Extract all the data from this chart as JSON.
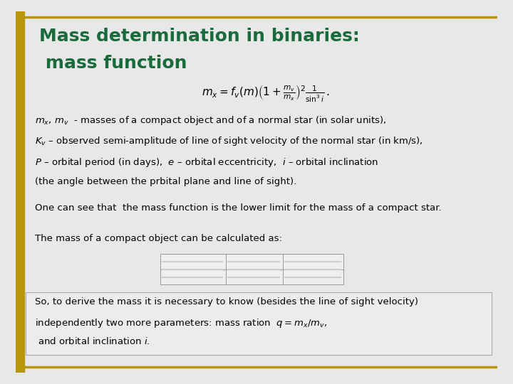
{
  "title_line1": "Mass determination in binaries:",
  "title_line2": " mass function",
  "title_color": "#1a6b3c",
  "background_color": "#f0f0f0",
  "slide_bg": "#f5f5f5",
  "border_color": "#b8960c",
  "formula_color": "#000000",
  "text_block1_lines": [
    "$m_x,\\, m_v$  - masses of a compact object and of a normal star (in solar units),",
    "$K_v$ – observed semi-amplitude of line of sight velocity of the normal star (in km/s),",
    "$P$ – orbital period (in days),  $e$ – orbital eccentricity,  $i$ – orbital inclination",
    "(the angle between the prbital plane and line of sight)."
  ],
  "text_block2": "One can see that  the mass function is the lower limit for the mass of a compact star.",
  "text_block3": "The mass of a compact object can be calculated as:",
  "text_block4_lines": [
    "So, to derive the mass it is necessary to know (besides the line of sight velocity)",
    "independently two more parameters: mass ration  $q=m_x/m_v$,",
    " and orbital inclination $i$."
  ],
  "text_color": "#000000",
  "title_fontsize": 18,
  "body_fontsize": 9.5,
  "formula_fontsize": 11
}
